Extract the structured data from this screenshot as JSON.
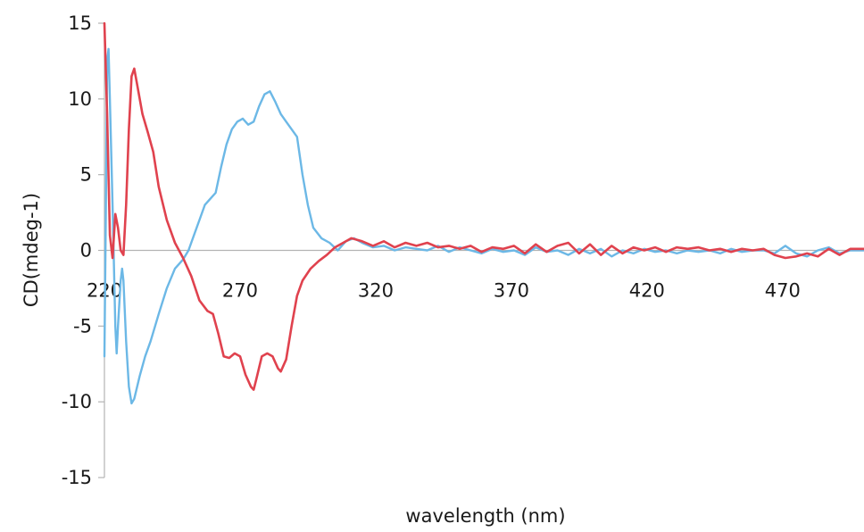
{
  "chart_data": {
    "type": "line",
    "title": "",
    "xlabel": "wavelength (nm)",
    "ylabel": "CD(mdeg-1)",
    "xlim": [
      220,
      500
    ],
    "ylim": [
      -15,
      15
    ],
    "xticks": [
      220,
      270,
      320,
      370,
      420,
      470
    ],
    "yticks": [
      15,
      10,
      5,
      0,
      -5,
      -10,
      -15
    ],
    "grid": false,
    "legend": "none",
    "series": [
      {
        "color": "#e0424e",
        "points": [
          [
            220,
            15
          ],
          [
            221,
            9
          ],
          [
            222,
            1
          ],
          [
            223,
            -0.5
          ],
          [
            224,
            2.4
          ],
          [
            225,
            1.5
          ],
          [
            226,
            0
          ],
          [
            227,
            -0.3
          ],
          [
            228,
            3
          ],
          [
            229,
            8
          ],
          [
            230,
            11.5
          ],
          [
            231,
            12
          ],
          [
            232,
            11
          ],
          [
            234,
            9
          ],
          [
            236,
            7.8
          ],
          [
            238,
            6.5
          ],
          [
            240,
            4.2
          ],
          [
            243,
            2
          ],
          [
            246,
            0.5
          ],
          [
            249,
            -0.5
          ],
          [
            252,
            -1.7
          ],
          [
            255,
            -3.3
          ],
          [
            258,
            -4
          ],
          [
            260,
            -4.2
          ],
          [
            262,
            -5.5
          ],
          [
            264,
            -7
          ],
          [
            266,
            -7.1
          ],
          [
            268,
            -6.8
          ],
          [
            270,
            -7
          ],
          [
            272,
            -8.2
          ],
          [
            274,
            -9
          ],
          [
            275,
            -9.2
          ],
          [
            276,
            -8.5
          ],
          [
            278,
            -7
          ],
          [
            280,
            -6.8
          ],
          [
            282,
            -7
          ],
          [
            284,
            -7.8
          ],
          [
            285,
            -8
          ],
          [
            287,
            -7.2
          ],
          [
            289,
            -5
          ],
          [
            291,
            -3
          ],
          [
            293,
            -2
          ],
          [
            296,
            -1.2
          ],
          [
            299,
            -0.7
          ],
          [
            302,
            -0.3
          ],
          [
            305,
            0.2
          ],
          [
            308,
            0.5
          ],
          [
            311,
            0.8
          ],
          [
            315,
            0.6
          ],
          [
            319,
            0.3
          ],
          [
            323,
            0.6
          ],
          [
            327,
            0.2
          ],
          [
            331,
            0.5
          ],
          [
            335,
            0.3
          ],
          [
            339,
            0.5
          ],
          [
            343,
            0.2
          ],
          [
            347,
            0.3
          ],
          [
            351,
            0.1
          ],
          [
            355,
            0.3
          ],
          [
            359,
            -0.1
          ],
          [
            363,
            0.2
          ],
          [
            367,
            0.1
          ],
          [
            371,
            0.3
          ],
          [
            375,
            -0.2
          ],
          [
            379,
            0.4
          ],
          [
            383,
            -0.1
          ],
          [
            387,
            0.3
          ],
          [
            391,
            0.5
          ],
          [
            395,
            -0.2
          ],
          [
            399,
            0.4
          ],
          [
            403,
            -0.3
          ],
          [
            407,
            0.3
          ],
          [
            411,
            -0.2
          ],
          [
            415,
            0.2
          ],
          [
            419,
            0
          ],
          [
            423,
            0.2
          ],
          [
            427,
            -0.1
          ],
          [
            431,
            0.2
          ],
          [
            435,
            0.1
          ],
          [
            439,
            0.2
          ],
          [
            443,
            0
          ],
          [
            447,
            0.1
          ],
          [
            451,
            -0.1
          ],
          [
            455,
            0.1
          ],
          [
            459,
            0
          ],
          [
            463,
            0.1
          ],
          [
            467,
            -0.3
          ],
          [
            471,
            -0.5
          ],
          [
            475,
            -0.4
          ],
          [
            479,
            -0.2
          ],
          [
            483,
            -0.4
          ],
          [
            487,
            0.1
          ],
          [
            491,
            -0.3
          ],
          [
            495,
            0.1
          ],
          [
            500,
            0.1
          ]
        ]
      },
      {
        "color": "#6cb8e6",
        "points": [
          [
            220,
            -7
          ],
          [
            220.5,
            2
          ],
          [
            221,
            12.5
          ],
          [
            221.5,
            13.3
          ],
          [
            222,
            10
          ],
          [
            223,
            3
          ],
          [
            224,
            -5
          ],
          [
            224.5,
            -6.8
          ],
          [
            225,
            -5
          ],
          [
            226,
            -2
          ],
          [
            226.5,
            -1.2
          ],
          [
            227,
            -2
          ],
          [
            228,
            -6
          ],
          [
            229,
            -9
          ],
          [
            230,
            -10.1
          ],
          [
            231,
            -9.8
          ],
          [
            233,
            -8.3
          ],
          [
            235,
            -7
          ],
          [
            237,
            -6
          ],
          [
            240,
            -4.2
          ],
          [
            243,
            -2.5
          ],
          [
            246,
            -1.2
          ],
          [
            249,
            -0.6
          ],
          [
            251,
            0
          ],
          [
            253,
            1
          ],
          [
            255,
            2
          ],
          [
            257,
            3
          ],
          [
            259,
            3.4
          ],
          [
            261,
            3.8
          ],
          [
            263,
            5.5
          ],
          [
            265,
            7
          ],
          [
            267,
            8
          ],
          [
            269,
            8.5
          ],
          [
            271,
            8.7
          ],
          [
            273,
            8.3
          ],
          [
            275,
            8.5
          ],
          [
            277,
            9.5
          ],
          [
            279,
            10.3
          ],
          [
            281,
            10.5
          ],
          [
            283,
            9.8
          ],
          [
            285,
            9
          ],
          [
            287,
            8.5
          ],
          [
            289,
            8
          ],
          [
            291,
            7.5
          ],
          [
            293,
            5
          ],
          [
            295,
            3
          ],
          [
            297,
            1.5
          ],
          [
            300,
            0.8
          ],
          [
            303,
            0.5
          ],
          [
            306,
            0
          ],
          [
            309,
            0.6
          ],
          [
            312,
            0.8
          ],
          [
            315,
            0.5
          ],
          [
            319,
            0.2
          ],
          [
            323,
            0.3
          ],
          [
            327,
            0
          ],
          [
            331,
            0.2
          ],
          [
            335,
            0.1
          ],
          [
            339,
            0
          ],
          [
            343,
            0.3
          ],
          [
            347,
            -0.1
          ],
          [
            351,
            0.2
          ],
          [
            355,
            0
          ],
          [
            359,
            -0.2
          ],
          [
            363,
            0.1
          ],
          [
            367,
            -0.1
          ],
          [
            371,
            0
          ],
          [
            375,
            -0.3
          ],
          [
            379,
            0.2
          ],
          [
            383,
            -0.1
          ],
          [
            387,
            0
          ],
          [
            391,
            -0.3
          ],
          [
            395,
            0.1
          ],
          [
            399,
            -0.2
          ],
          [
            403,
            0.1
          ],
          [
            407,
            -0.4
          ],
          [
            411,
            0
          ],
          [
            415,
            -0.2
          ],
          [
            419,
            0.1
          ],
          [
            423,
            -0.1
          ],
          [
            427,
            0
          ],
          [
            431,
            -0.2
          ],
          [
            435,
            0
          ],
          [
            439,
            -0.1
          ],
          [
            443,
            0
          ],
          [
            447,
            -0.2
          ],
          [
            451,
            0.1
          ],
          [
            455,
            -0.1
          ],
          [
            459,
            0
          ],
          [
            463,
            0
          ],
          [
            467,
            -0.2
          ],
          [
            471,
            0.3
          ],
          [
            475,
            -0.2
          ],
          [
            479,
            -0.4
          ],
          [
            483,
            0
          ],
          [
            487,
            0.2
          ],
          [
            491,
            -0.2
          ],
          [
            495,
            0
          ],
          [
            500,
            0
          ]
        ]
      }
    ]
  }
}
